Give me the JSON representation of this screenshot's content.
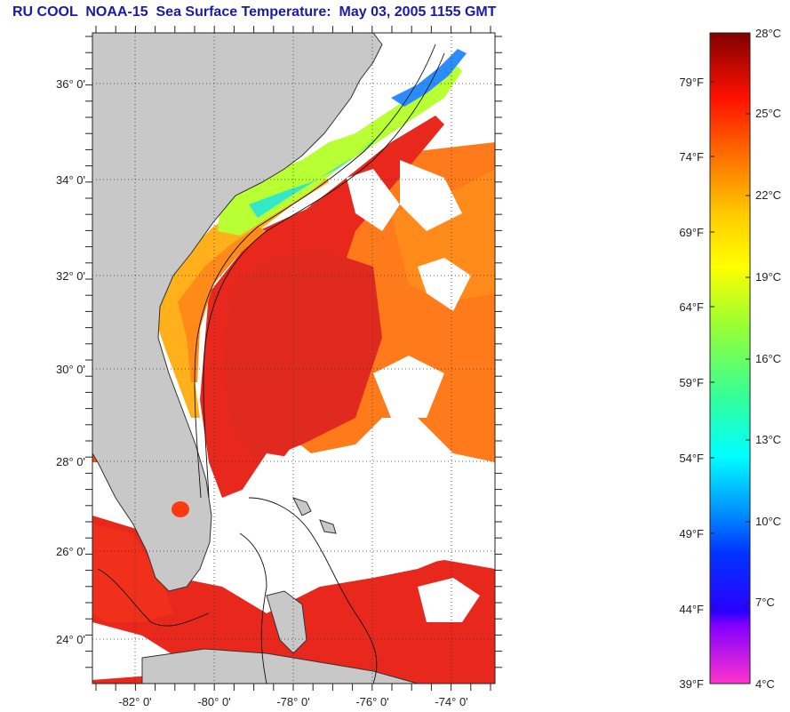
{
  "title": "RU COOL  NOAA-15  Sea Surface Temperature:  May 03, 2005 1155 GMT",
  "map": {
    "lat_labels": [
      "36° 0'",
      "34° 0'",
      "32° 0'",
      "30° 0'",
      "28° 0'",
      "26° 0'",
      "24° 0'"
    ],
    "lon_labels": [
      "-82° 0'",
      "-80° 0'",
      "-78° 0'",
      "-76° 0'",
      "-74° 0'"
    ],
    "land_color": "#c8c8c8",
    "cloud_color": "#ffffff",
    "grid": "dotted"
  },
  "colorbar": {
    "celsius_labels": [
      "28°C",
      "25°C",
      "22°C",
      "19°C",
      "16°C",
      "13°C",
      "10°C",
      "7°C",
      "4°C"
    ],
    "fahrenheit_labels": [
      "79°F",
      "74°F",
      "69°F",
      "64°F",
      "59°F",
      "54°F",
      "49°F",
      "44°F",
      "39°F"
    ],
    "colors": [
      "#800000",
      "#ff0000",
      "#ff6a00",
      "#ffcc00",
      "#ffff00",
      "#66ff33",
      "#00ff99",
      "#00ffff",
      "#0066ff",
      "#0000ff",
      "#8000ff",
      "#ff33cc"
    ]
  }
}
